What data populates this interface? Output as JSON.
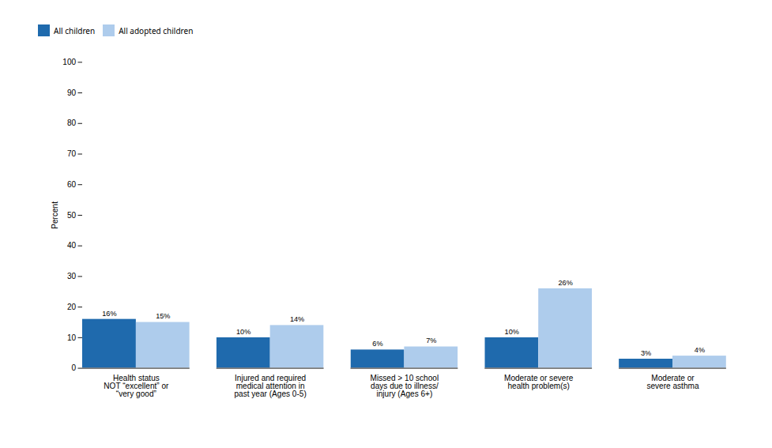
{
  "chart_data": {
    "type": "bar",
    "categories": [
      "Health status\nNOT “excellent” or\n“very good”",
      "Injured and required\nmedical attention in\npast year (Ages 0-5)",
      "Missed > 10 school\ndays due to illness/\ninjury (Ages 6+)",
      "Moderate or severe\nhealth problem(s)",
      "Moderate or\nsevere asthma"
    ],
    "series": [
      {
        "name": "All children",
        "color": "#1F6AAD",
        "values": [
          16,
          10,
          6,
          10,
          3
        ],
        "value_labels": [
          "16%",
          "10%",
          "6%",
          "10%",
          "3%"
        ]
      },
      {
        "name": "All adopted children",
        "color": "#AECCEC",
        "values": [
          15,
          14,
          7,
          26,
          4
        ],
        "value_labels": [
          "15%",
          "14%",
          "7%",
          "26%",
          "4%"
        ]
      }
    ],
    "ylabel": "Percent",
    "ylim": [
      0,
      100
    ],
    "yticks": [
      0,
      10,
      20,
      30,
      40,
      50,
      60,
      70,
      80,
      90,
      100
    ],
    "grid": false,
    "legend": "top",
    "data_labels": true
  }
}
